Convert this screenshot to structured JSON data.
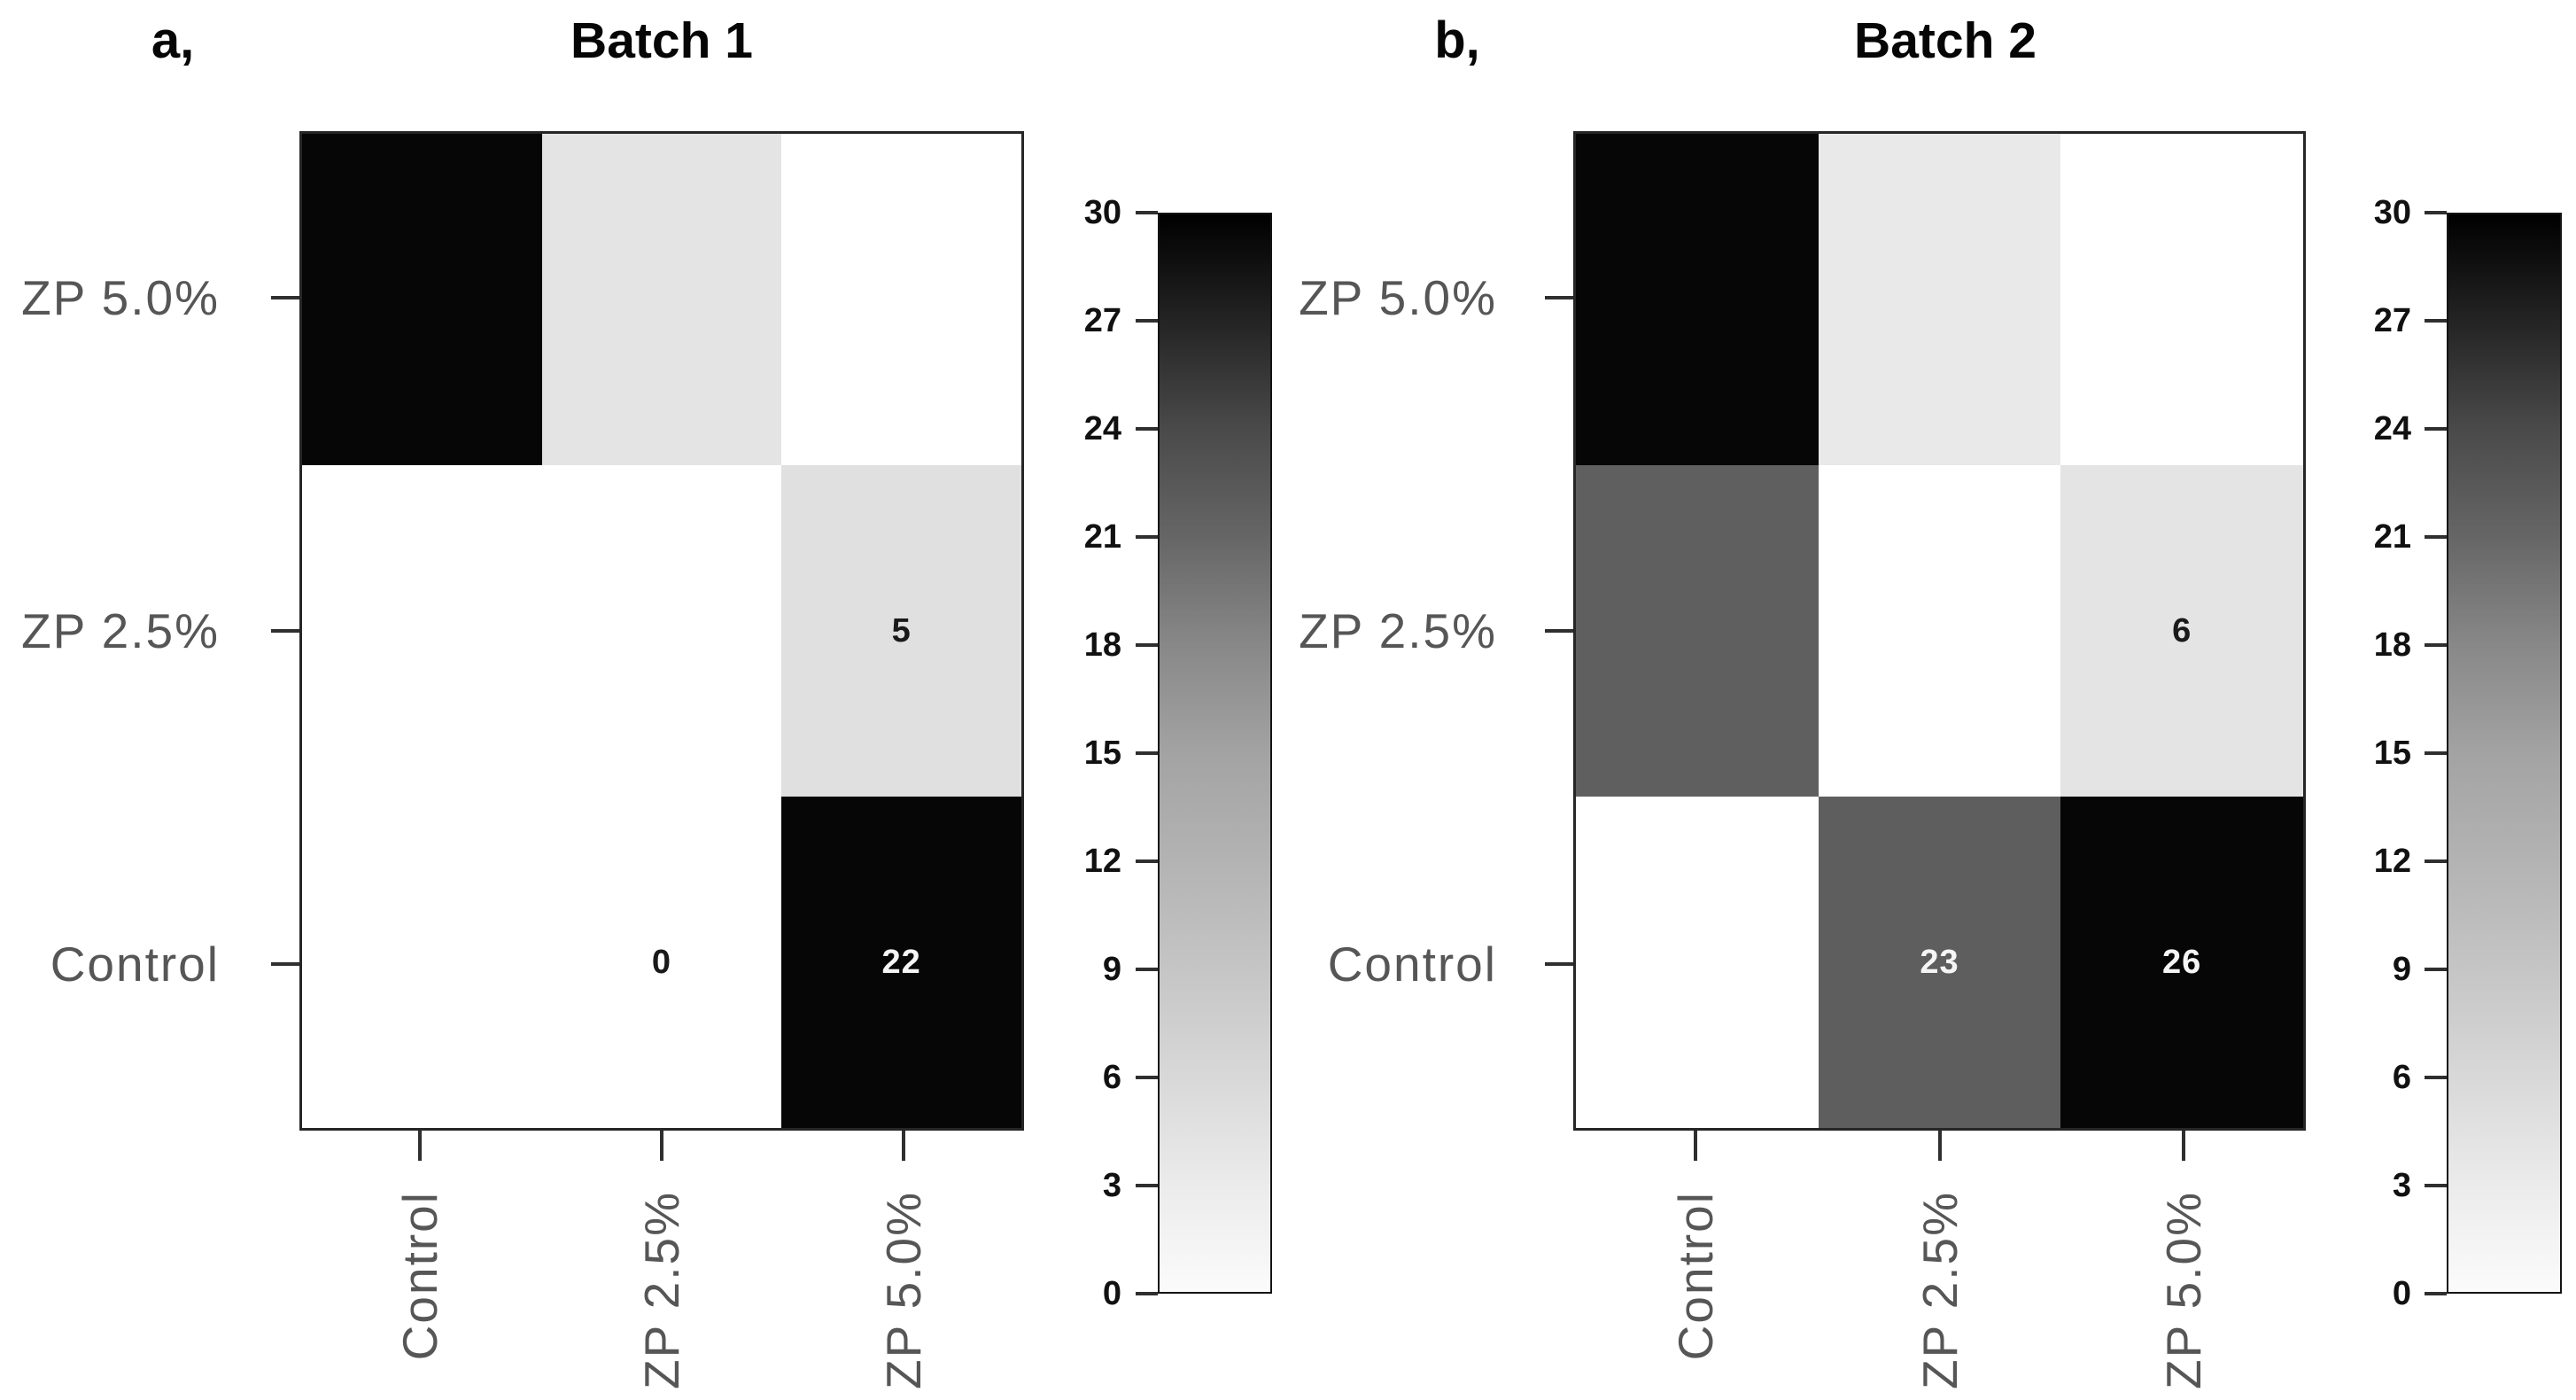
{
  "figure": {
    "background": "#ffffff",
    "axis_label_color": "#565656",
    "tick_color": "#2f2f2f",
    "value_text_dark": "#1a1a1a",
    "value_text_light": "#f5f5f5"
  },
  "panels": [
    {
      "panel_label": "a,",
      "title": "Batch 1",
      "x_categories": [
        "Control",
        "ZP 2.5%",
        "ZP 5.0%"
      ],
      "y_categories": [
        "ZP 5.0%",
        "ZP 2.5%",
        "Control"
      ],
      "cells": [
        [
          {
            "color": "#060606",
            "label": "",
            "label_color": "#f5f5f5"
          },
          {
            "color": "#e4e4e4",
            "label": "",
            "label_color": "#1a1a1a"
          },
          {
            "color": "#ffffff",
            "label": "",
            "label_color": "#1a1a1a"
          }
        ],
        [
          {
            "color": "#ffffff",
            "label": "",
            "label_color": "#1a1a1a"
          },
          {
            "color": "#ffffff",
            "label": "",
            "label_color": "#1a1a1a"
          },
          {
            "color": "#e0e0e0",
            "label": "5",
            "label_color": "#1a1a1a"
          }
        ],
        [
          {
            "color": "#ffffff",
            "label": "",
            "label_color": "#1a1a1a"
          },
          {
            "color": "#ffffff",
            "label": "0",
            "label_color": "#1a1a1a"
          },
          {
            "color": "#060606",
            "label": "22",
            "label_color": "#f5f5f5"
          }
        ]
      ],
      "colorbar_ticks": [
        "30",
        "27",
        "24",
        "21",
        "18",
        "15",
        "12",
        "9",
        "6",
        "3",
        "0"
      ]
    },
    {
      "panel_label": "b,",
      "title": "Batch 2",
      "x_categories": [
        "Control",
        "ZP 2.5%",
        "ZP 5.0%"
      ],
      "y_categories": [
        "ZP 5.0%",
        "ZP 2.5%",
        "Control"
      ],
      "cells": [
        [
          {
            "color": "#060606",
            "label": "",
            "label_color": "#f5f5f5"
          },
          {
            "color": "#e9e9e9",
            "label": "",
            "label_color": "#1a1a1a"
          },
          {
            "color": "#ffffff",
            "label": "",
            "label_color": "#1a1a1a"
          }
        ],
        [
          {
            "color": "#5f5f5f",
            "label": "",
            "label_color": "#f5f5f5"
          },
          {
            "color": "#ffffff",
            "label": "",
            "label_color": "#1a1a1a"
          },
          {
            "color": "#e4e4e4",
            "label": "6",
            "label_color": "#1a1a1a"
          }
        ],
        [
          {
            "color": "#ffffff",
            "label": "",
            "label_color": "#1a1a1a"
          },
          {
            "color": "#5e5e5e",
            "label": "23",
            "label_color": "#f5f5f5"
          },
          {
            "color": "#060606",
            "label": "26",
            "label_color": "#f5f5f5"
          }
        ]
      ],
      "colorbar_ticks": [
        "30",
        "27",
        "24",
        "21",
        "18",
        "15",
        "12",
        "9",
        "6",
        "3",
        "0"
      ]
    }
  ],
  "chart_data": [
    {
      "type": "heatmap",
      "panel_label": "a,",
      "title": "Batch 1",
      "x_categories": [
        "Control",
        "ZP 2.5%",
        "ZP 5.0%"
      ],
      "y_categories_top_to_bottom": [
        "ZP 5.0%",
        "ZP 2.5%",
        "Control"
      ],
      "cell_values_printed": [
        [
          null,
          null,
          null
        ],
        [
          null,
          null,
          5
        ],
        [
          null,
          0,
          22
        ]
      ],
      "cell_colors": [
        [
          "#060606",
          "#e4e4e4",
          "#ffffff"
        ],
        [
          "#ffffff",
          "#ffffff",
          "#e0e0e0"
        ],
        [
          "#ffffff",
          "#ffffff",
          "#060606"
        ]
      ],
      "colorbar": {
        "min": 0,
        "max": 30,
        "tick_step": 3,
        "ticks": [
          0,
          3,
          6,
          9,
          12,
          15,
          18,
          21,
          24,
          27,
          30
        ],
        "gradient": "light-at-0 to black-at-30",
        "position": "right"
      },
      "grid": false,
      "notes": "symmetric pairwise matrix; numbers printed only in lower-left cells"
    },
    {
      "type": "heatmap",
      "panel_label": "b,",
      "title": "Batch 2",
      "x_categories": [
        "Control",
        "ZP 2.5%",
        "ZP 5.0%"
      ],
      "y_categories_top_to_bottom": [
        "ZP 5.0%",
        "ZP 2.5%",
        "Control"
      ],
      "cell_values_printed": [
        [
          null,
          null,
          null
        ],
        [
          null,
          null,
          6
        ],
        [
          null,
          23,
          26
        ]
      ],
      "cell_colors": [
        [
          "#060606",
          "#e9e9e9",
          "#ffffff"
        ],
        [
          "#5f5f5f",
          "#ffffff",
          "#e4e4e4"
        ],
        [
          "#ffffff",
          "#5e5e5e",
          "#060606"
        ]
      ],
      "colorbar": {
        "min": 0,
        "max": 30,
        "tick_step": 3,
        "ticks": [
          0,
          3,
          6,
          9,
          12,
          15,
          18,
          21,
          24,
          27,
          30
        ],
        "gradient": "light-at-0 to black-at-30",
        "position": "right"
      },
      "grid": false,
      "notes": "symmetric pairwise matrix; numbers printed only in lower-left cells"
    }
  ]
}
